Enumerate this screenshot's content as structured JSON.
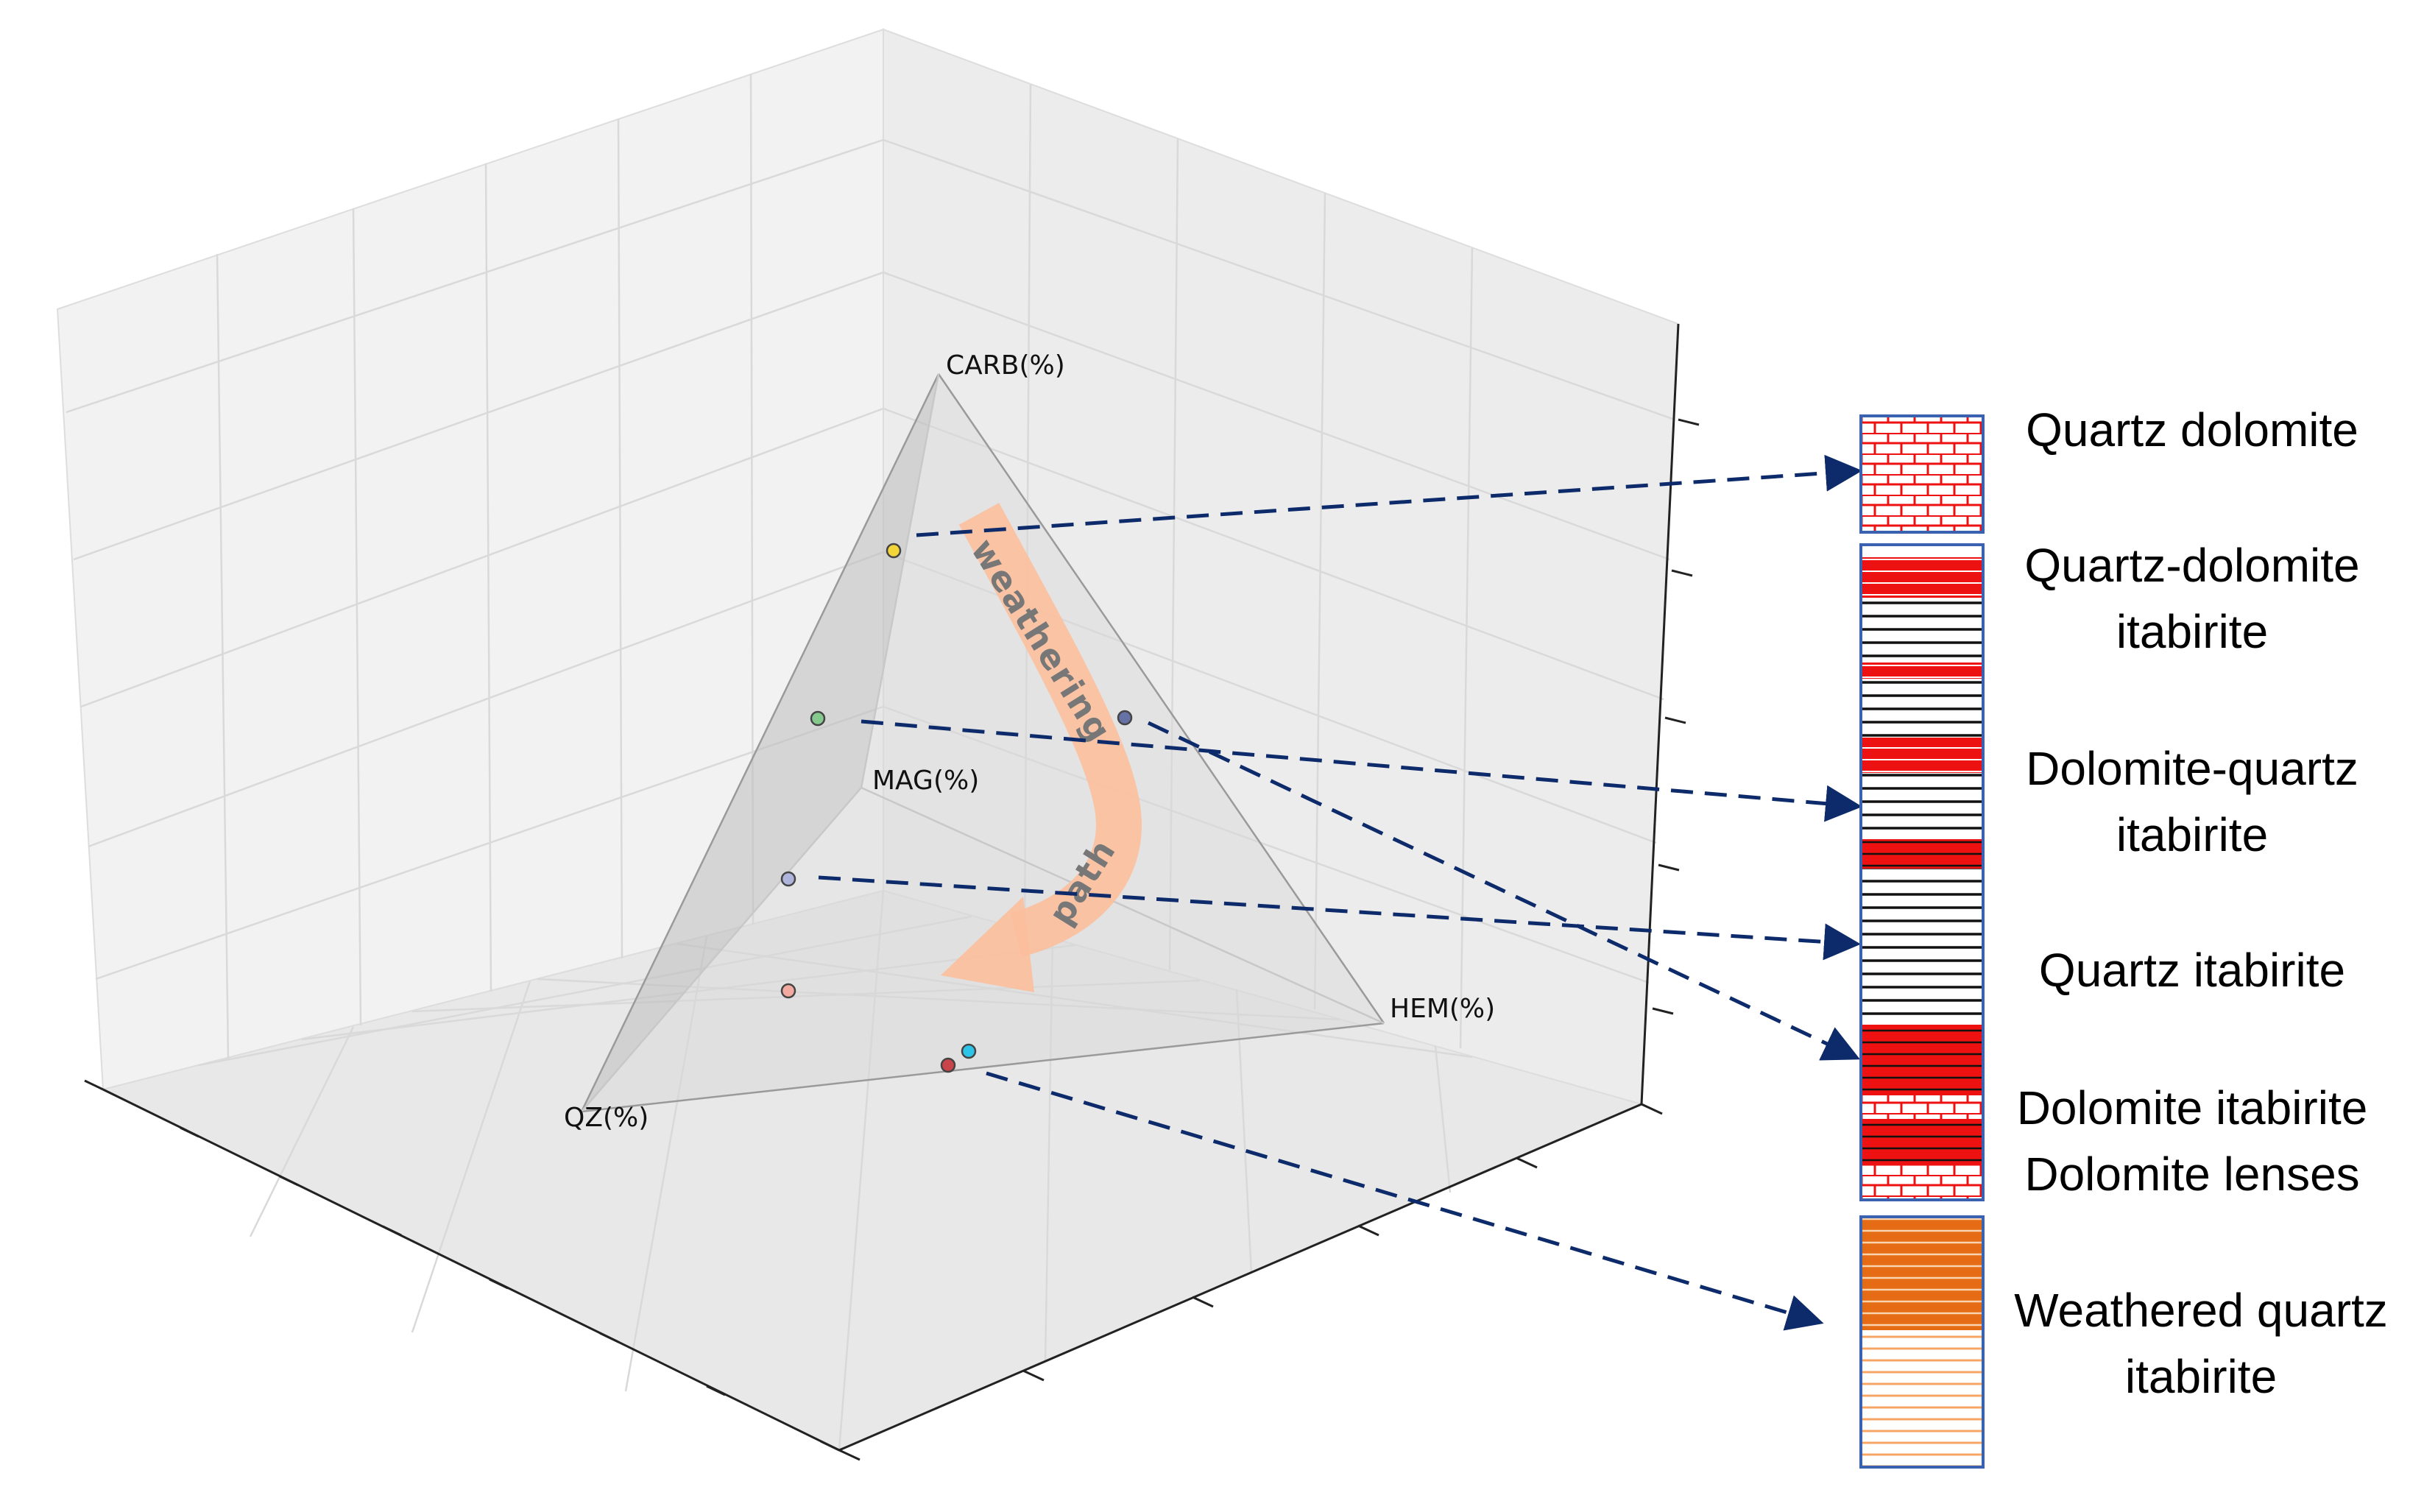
{
  "diagram": {
    "vertices": [
      {
        "id": "carb",
        "label": "CARB(%)"
      },
      {
        "id": "mag",
        "label": "MAG(%)"
      },
      {
        "id": "qz",
        "label": "QZ(%)"
      },
      {
        "id": "hem",
        "label": "HEM(%)"
      }
    ],
    "weathering_arrow": {
      "word1": "weathering",
      "word2": "path",
      "color": "#fbbf9c"
    },
    "points": [
      {
        "id": "p-yellow",
        "color": "#f3d53a"
      },
      {
        "id": "p-green",
        "color": "#86c98d"
      },
      {
        "id": "p-slate",
        "color": "#6672a6"
      },
      {
        "id": "p-lavender",
        "color": "#aeb4dc"
      },
      {
        "id": "p-pink",
        "color": "#f2aaa0"
      },
      {
        "id": "p-red",
        "color": "#c9454a"
      },
      {
        "id": "p-cyan",
        "color": "#2ec4e8"
      }
    ],
    "connector_color": "#0d2b6b"
  },
  "legend": {
    "items": [
      {
        "id": "quartz-dolomite",
        "label_lines": [
          "Quartz dolomite"
        ]
      },
      {
        "id": "quartz-dolomite-itabirite",
        "label_lines": [
          "Quartz-dolomite",
          "itabirite"
        ]
      },
      {
        "id": "dolomite-quartz-itabirite",
        "label_lines": [
          "Dolomite-quartz",
          "itabirite"
        ]
      },
      {
        "id": "quartz-itabirite",
        "label_lines": [
          "Quartz itabirite"
        ]
      },
      {
        "id": "dolomite-itabirite",
        "label_lines": [
          "Dolomite itabirite"
        ]
      },
      {
        "id": "dolomite-lenses",
        "label_lines": [
          "Dolomite lenses"
        ]
      },
      {
        "id": "weathered-quartz-itabirite",
        "label_lines": [
          "Weathered quartz",
          "itabirite"
        ]
      }
    ],
    "colors": {
      "border": "#3a62b0",
      "red": "#ee1111",
      "black_line": "#111111",
      "orange_dark": "#e56b14",
      "orange_light": "#f6a765"
    }
  }
}
